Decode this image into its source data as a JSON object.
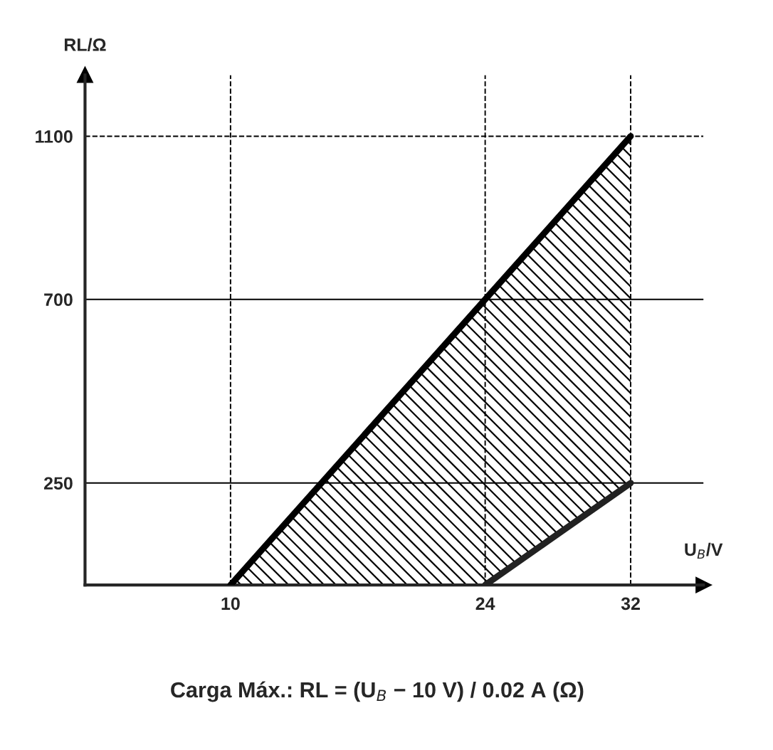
{
  "chart_data": {
    "type": "line",
    "xlabel": "U$_{B}$/V",
    "ylabel": "RL/Ω",
    "xlim": [
      2,
      36
    ],
    "ylim": [
      0,
      1250
    ],
    "xticks": [
      10,
      24,
      32
    ],
    "yticks": [
      250,
      700,
      1100
    ],
    "grid": false,
    "marker": "none",
    "line_style": "solid",
    "series": [
      {
        "color": "#000000",
        "x": [
          10,
          24,
          32
        ],
        "values": [
          0,
          700,
          1100
        ],
        "lower": [
          0,
          0,
          250
        ],
        "upper": [
          0,
          700,
          1100
        ]
      },
      {
        "color": "#222222",
        "x": [
          24,
          32
        ],
        "values": [
          0,
          250
        ]
      }
    ],
    "ref_lines": [
      {
        "axis": "x",
        "value": 10,
        "line_style": "dashed",
        "color": "#000000"
      },
      {
        "axis": "x",
        "value": 24,
        "line_style": "dashed",
        "color": "#000000"
      },
      {
        "axis": "x",
        "value": 32,
        "line_style": "dashed",
        "color": "#000000"
      },
      {
        "axis": "y",
        "value": 1100,
        "line_style": "dashed",
        "color": "#000000"
      },
      {
        "axis": "y",
        "value": 700,
        "line_style": "solid",
        "color": "#000000"
      },
      {
        "axis": "y",
        "value": 250,
        "line_style": "solid",
        "color": "#000000"
      }
    ],
    "annotations": [
      "Carga Máx.: RL = (U$_{B}$ − 10 V) / 0.02 A (Ω)"
    ]
  }
}
